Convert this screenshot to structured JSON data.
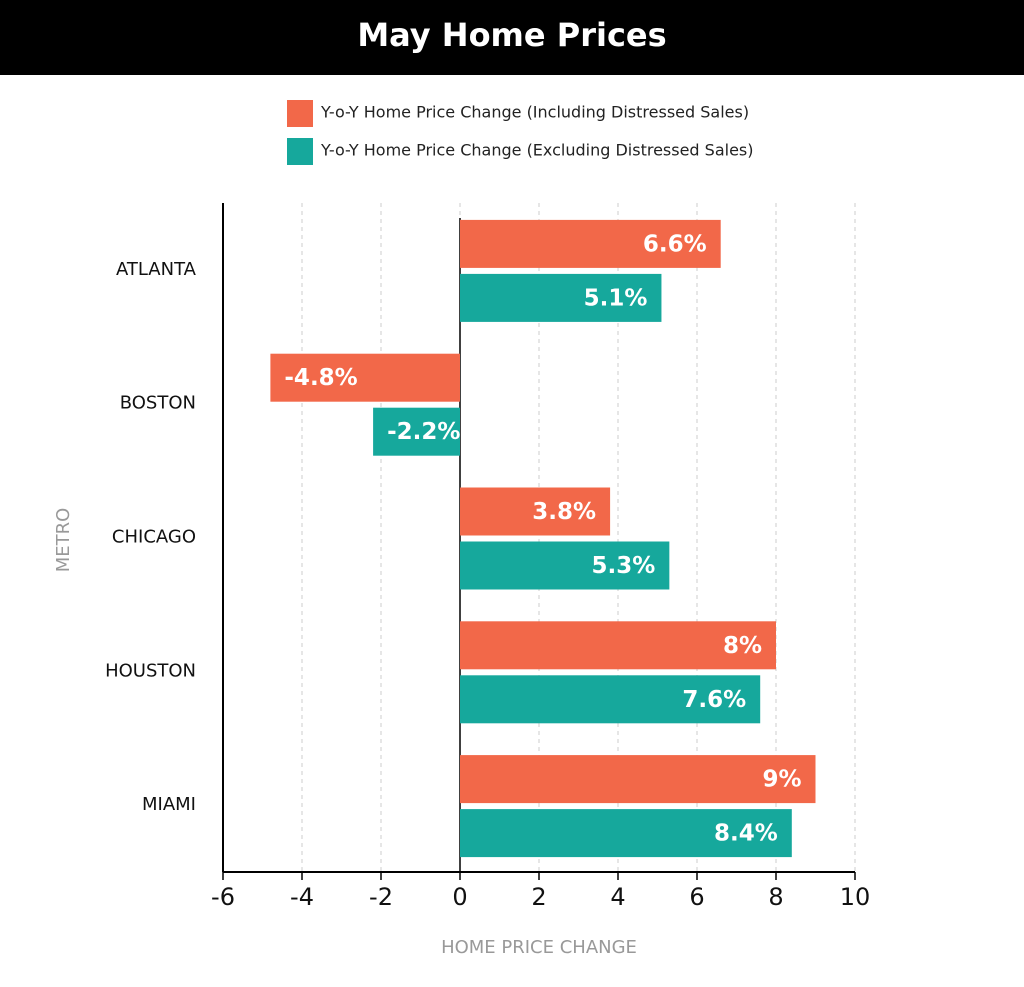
{
  "chart_data": {
    "type": "hbar",
    "title": "May Home Prices",
    "x_label": "HOME PRICE CHANGE",
    "y_label": "METRO",
    "categories": [
      "ATLANTA",
      "BOSTON",
      "CHICAGO",
      "HOUSTON",
      "MIAMI"
    ],
    "series": [
      {
        "name": "Y-o-Y Home Price Change (Including Distressed Sales)",
        "color": "#f26849",
        "values": [
          6.6,
          -4.8,
          3.8,
          8,
          9
        ],
        "value_labels": [
          "6.6%",
          "-4.8%",
          "3.8%",
          "8%",
          "9%"
        ]
      },
      {
        "name": "Y-o-Y Home Price Change (Excluding Distressed Sales)",
        "color": "#16a89c",
        "values": [
          5.1,
          -2.2,
          5.3,
          7.6,
          8.4
        ],
        "value_labels": [
          "5.1%",
          "-2.2%",
          "5.3%",
          "7.6%",
          "8.4%"
        ]
      }
    ],
    "xlim": [
      -6,
      10
    ],
    "xticks": [
      -6,
      -4,
      -2,
      0,
      2,
      4,
      6,
      8,
      10
    ],
    "grid": true
  }
}
